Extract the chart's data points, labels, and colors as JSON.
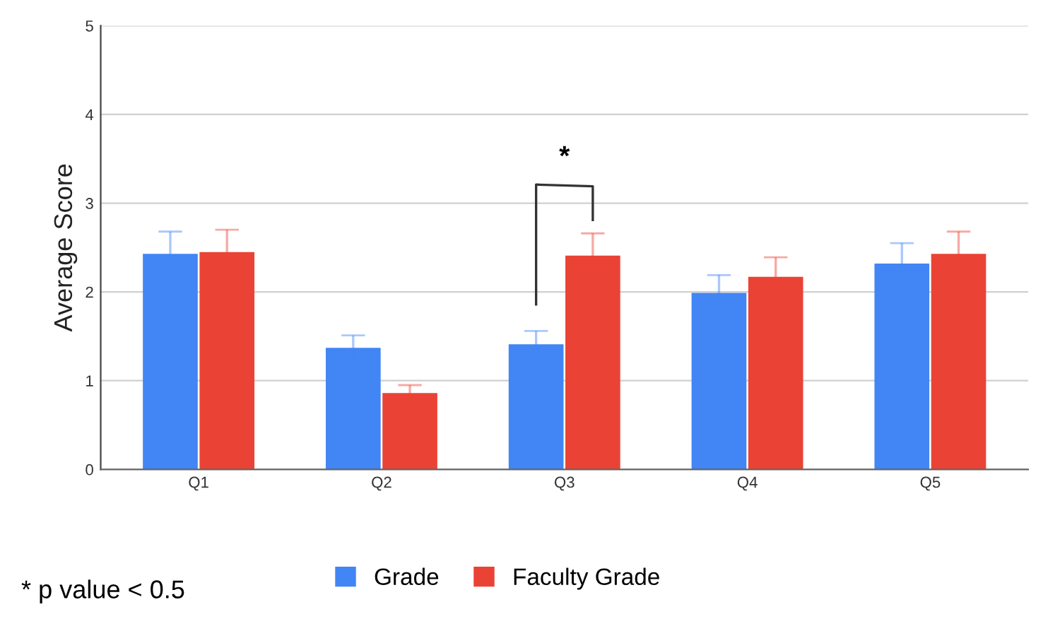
{
  "chart_data": {
    "type": "bar",
    "ylabel": "Average Score",
    "categories": [
      "Q1",
      "Q2",
      "Q3",
      "Q4",
      "Q5"
    ],
    "series": [
      {
        "name": "Grade",
        "color": "#4285f4",
        "values": [
          2.43,
          1.37,
          1.41,
          1.99,
          2.32
        ],
        "errors": [
          0.25,
          0.14,
          0.15,
          0.2,
          0.23
        ]
      },
      {
        "name": "Faculty Grade",
        "color": "#ea4335",
        "values": [
          2.45,
          0.86,
          2.41,
          2.17,
          2.43
        ],
        "errors": [
          0.25,
          0.09,
          0.25,
          0.22,
          0.25
        ]
      }
    ],
    "ylim": [
      0,
      5
    ],
    "yticks": [
      0,
      1,
      2,
      3,
      4,
      5
    ],
    "grid": "y",
    "legend": "bottom",
    "annotations": [
      "*",
      "* p value < 0.5"
    ]
  }
}
